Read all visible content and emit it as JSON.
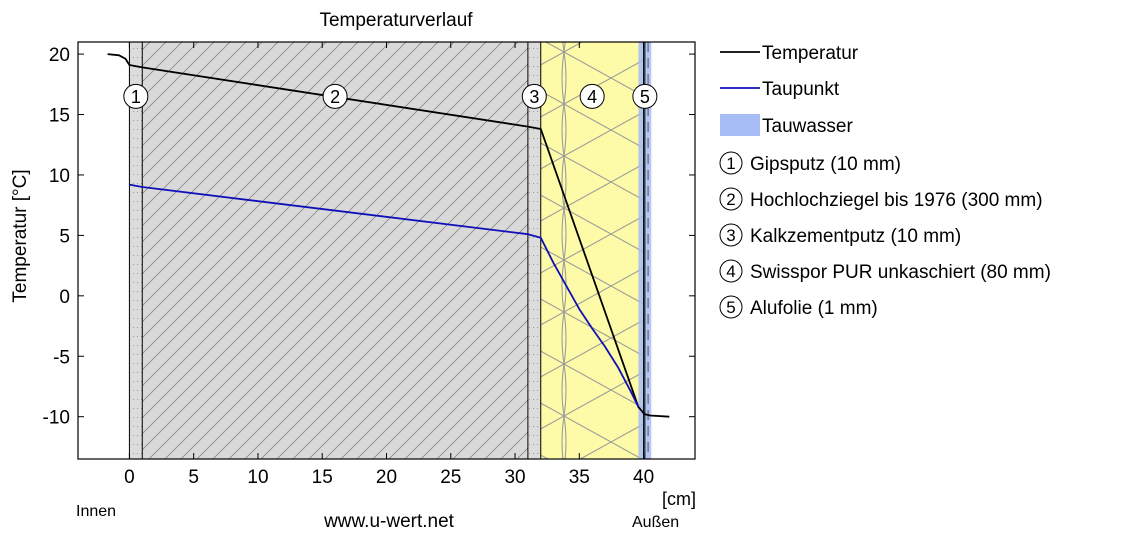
{
  "chart_data": {
    "type": "line",
    "title": "Temperaturverlauf",
    "xlabel": "[cm]",
    "ylabel": "Temperatur [°C]",
    "xlim": [
      -4,
      44
    ],
    "ylim": [
      -13.5,
      21
    ],
    "xticks": [
      0,
      5,
      10,
      15,
      20,
      25,
      30,
      35,
      40
    ],
    "yticks": [
      20,
      15,
      10,
      5,
      0,
      -5,
      -10
    ],
    "grid": false,
    "legend_position": "outside-right",
    "inside_label": "Innen",
    "outside_label": "Außen",
    "watermark": "www.u-wert.net",
    "layers": [
      {
        "num": "1",
        "name": "Gipsputz (10 mm)",
        "x_from": 0,
        "x_to": 1,
        "pattern": "dots",
        "fill": "#dcdcdc"
      },
      {
        "num": "2",
        "name": "Hochlochziegel bis 1976 (300 mm)",
        "x_from": 1,
        "x_to": 31,
        "pattern": "hatch",
        "fill": "#d9d9d9"
      },
      {
        "num": "3",
        "name": "Kalkzementputz (10 mm)",
        "x_from": 31,
        "x_to": 32,
        "pattern": "dots",
        "fill": "#dcdcdc"
      },
      {
        "num": "4",
        "name": "Swisspor PUR unkaschiert (80 mm)",
        "x_from": 32,
        "x_to": 40,
        "pattern": "insulation",
        "fill": "#fdfaa8"
      },
      {
        "num": "5",
        "name": "Alufolie (1 mm)",
        "x_from": 40,
        "x_to": 40.1,
        "pattern": "none",
        "fill": "#ffffff"
      }
    ],
    "condensation_zone": {
      "x_from": 39.6,
      "x_to": 40.6,
      "color": "#a6bcf5"
    },
    "series": [
      {
        "name": "Temperatur",
        "color": "#000000",
        "x": [
          -1.7,
          -0.8,
          -0.3,
          0,
          1,
          31,
          32,
          39.6,
          40,
          40.1,
          40.5,
          42.0
        ],
        "y": [
          20.0,
          19.9,
          19.6,
          19.1,
          18.9,
          14.0,
          13.8,
          -9.2,
          -9.7,
          -9.8,
          -9.9,
          -10.0
        ]
      },
      {
        "name": "Taupunkt",
        "color": "#1010b8",
        "x": [
          0,
          1,
          31,
          32,
          33,
          34,
          35,
          36,
          37,
          38,
          39,
          39.6
        ],
        "y": [
          9.2,
          9.0,
          5.1,
          4.8,
          2.7,
          0.8,
          -1.1,
          -2.7,
          -4.2,
          -5.9,
          -7.9,
          -9.2
        ]
      }
    ],
    "legend": [
      {
        "label": "Temperatur",
        "type": "line",
        "color": "#000000"
      },
      {
        "label": "Taupunkt",
        "type": "line",
        "color": "#1010b8"
      },
      {
        "label": "Tauwasser",
        "type": "patch",
        "color": "#a6bcf5"
      }
    ]
  }
}
